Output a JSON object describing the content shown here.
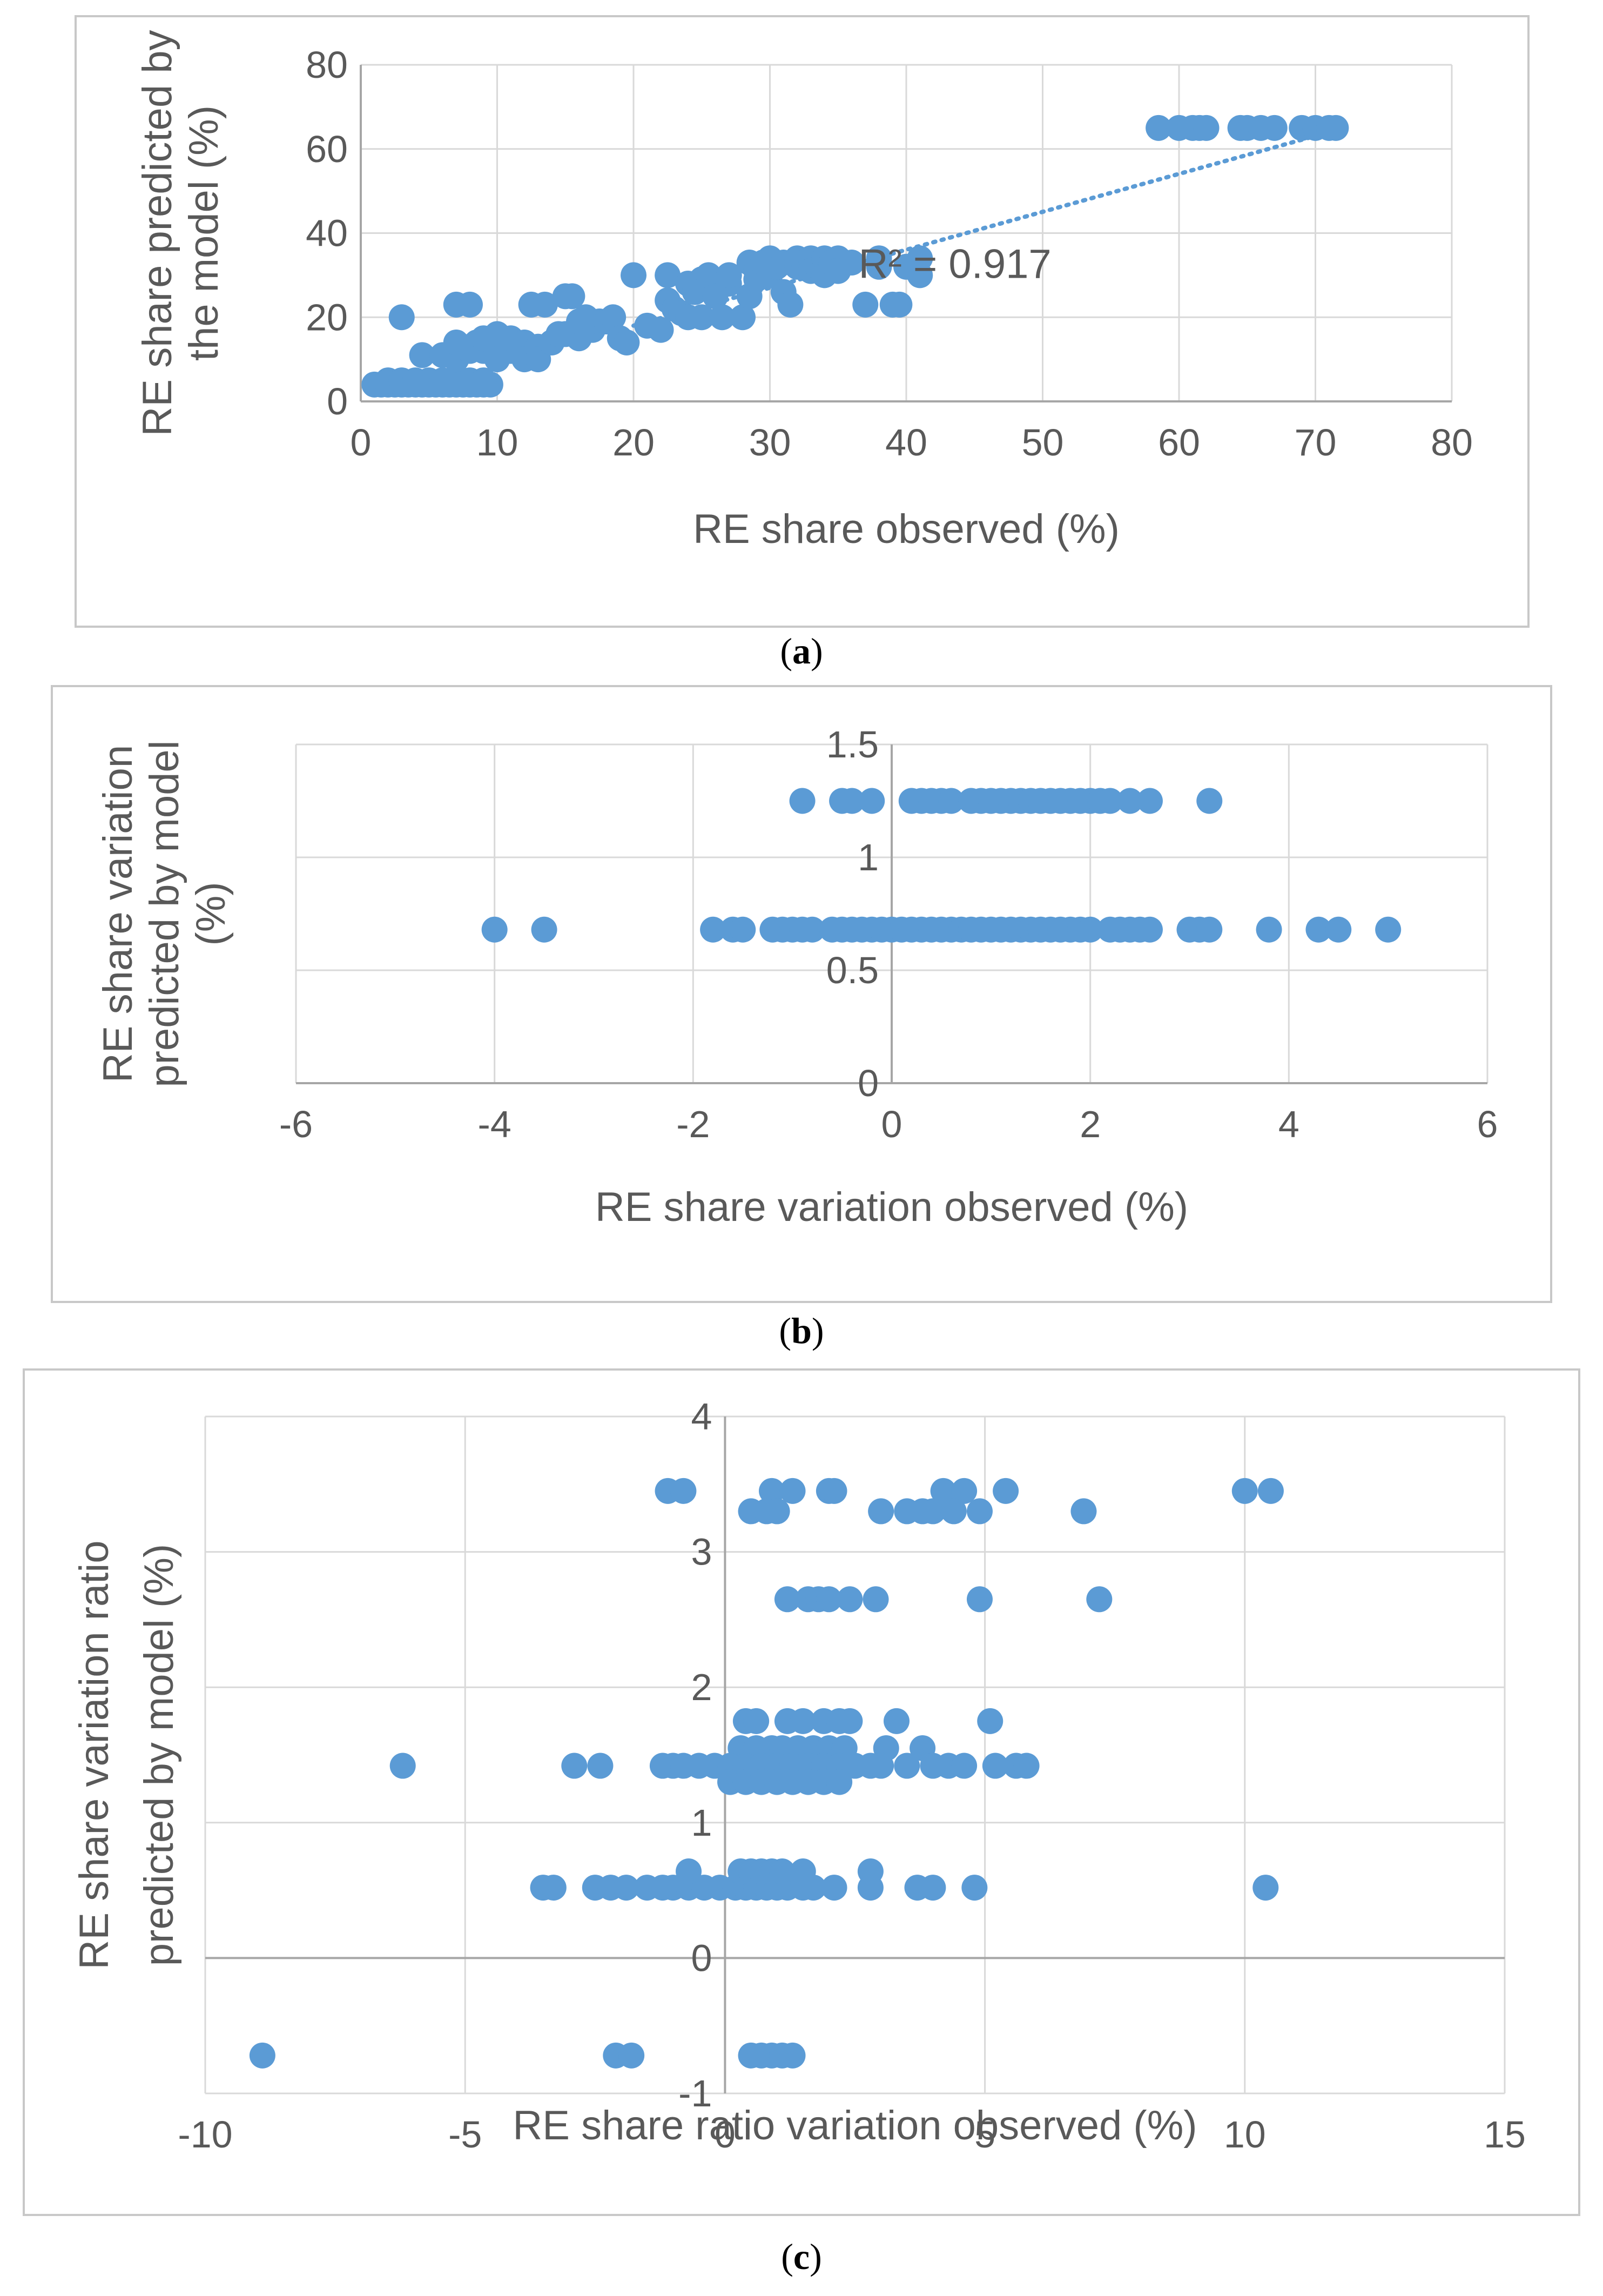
{
  "chart_data": [
    {
      "type": "scatter",
      "panel_label_parts": [
        "(",
        "a",
        ")"
      ],
      "xlabel": "RE share observed (%)",
      "ylabel_lines": [
        "RE share predicted by",
        "the model (%)"
      ],
      "xlim": [
        0,
        80
      ],
      "ylim": [
        0,
        80
      ],
      "xticks": [
        0,
        10,
        20,
        30,
        40,
        50,
        60,
        70,
        80
      ],
      "yticks": [
        0,
        20,
        40,
        60,
        80
      ],
      "xtick_labels": [
        "0",
        "10",
        "20",
        "30",
        "40",
        "50",
        "60",
        "70",
        "80"
      ],
      "ytick_labels": [
        "0",
        "20",
        "40",
        "60",
        "80"
      ],
      "grid": true,
      "marker_color": "#5b9bd5",
      "trendline": {
        "x": [
          20,
          71
        ],
        "y": [
          18,
          64
        ],
        "style": "dotted"
      },
      "annotation": "R² = 0.917",
      "points": [
        [
          1,
          4
        ],
        [
          1.5,
          4
        ],
        [
          2,
          4
        ],
        [
          2.5,
          4
        ],
        [
          3,
          4
        ],
        [
          3.5,
          4
        ],
        [
          4,
          4
        ],
        [
          4.5,
          4
        ],
        [
          5,
          4
        ],
        [
          5.5,
          4
        ],
        [
          6,
          4
        ],
        [
          6.5,
          4
        ],
        [
          7,
          4
        ],
        [
          7.5,
          4
        ],
        [
          8,
          4
        ],
        [
          8.5,
          4
        ],
        [
          9,
          4
        ],
        [
          9.5,
          4
        ],
        [
          2,
          5
        ],
        [
          3,
          5
        ],
        [
          4,
          5
        ],
        [
          5,
          5
        ],
        [
          6,
          5
        ],
        [
          7,
          5
        ],
        [
          8,
          5
        ],
        [
          9,
          5
        ],
        [
          3,
          20
        ],
        [
          7,
          23
        ],
        [
          8,
          23
        ],
        [
          4.5,
          11
        ],
        [
          6,
          11
        ],
        [
          7,
          10
        ],
        [
          7.5,
          12
        ],
        [
          8,
          13
        ],
        [
          8.5,
          14
        ],
        [
          7,
          14
        ],
        [
          8,
          12
        ],
        [
          9,
          12
        ],
        [
          9,
          15
        ],
        [
          10,
          13
        ],
        [
          10,
          10
        ],
        [
          10,
          16
        ],
        [
          11,
          12
        ],
        [
          11,
          15
        ],
        [
          12,
          14
        ],
        [
          12,
          10
        ],
        [
          12.5,
          23
        ],
        [
          13,
          13
        ],
        [
          13,
          10
        ],
        [
          13.5,
          23
        ],
        [
          14,
          14
        ],
        [
          14.5,
          16
        ],
        [
          15,
          16
        ],
        [
          15,
          25
        ],
        [
          15.5,
          25
        ],
        [
          16,
          15
        ],
        [
          16,
          19
        ],
        [
          16.5,
          20
        ],
        [
          17,
          17
        ],
        [
          17.5,
          19
        ],
        [
          18,
          19
        ],
        [
          18.5,
          20
        ],
        [
          19,
          15
        ],
        [
          19.5,
          14
        ],
        [
          20,
          30
        ],
        [
          21,
          18
        ],
        [
          22,
          17
        ],
        [
          22.5,
          24
        ],
        [
          22.5,
          30
        ],
        [
          23,
          22
        ],
        [
          23.5,
          21
        ],
        [
          24,
          28
        ],
        [
          24,
          20
        ],
        [
          24.5,
          26
        ],
        [
          25,
          29
        ],
        [
          25,
          20
        ],
        [
          25.5,
          30
        ],
        [
          26,
          25
        ],
        [
          26.5,
          20
        ],
        [
          27,
          28
        ],
        [
          27,
          30
        ],
        [
          28,
          20
        ],
        [
          28.5,
          25
        ],
        [
          28.5,
          33
        ],
        [
          29,
          31
        ],
        [
          29,
          29
        ],
        [
          29.5,
          33
        ],
        [
          30,
          30
        ],
        [
          30,
          34
        ],
        [
          30.5,
          32
        ],
        [
          31,
          33
        ],
        [
          31,
          26
        ],
        [
          31.5,
          23
        ],
        [
          32,
          34
        ],
        [
          32,
          32
        ],
        [
          32.5,
          33
        ],
        [
          33,
          34
        ],
        [
          33,
          31
        ],
        [
          33.5,
          32
        ],
        [
          34,
          34
        ],
        [
          34,
          30
        ],
        [
          34.5,
          33
        ],
        [
          35,
          34
        ],
        [
          35,
          31
        ],
        [
          36,
          33
        ],
        [
          37,
          23
        ],
        [
          38,
          34
        ],
        [
          38,
          32
        ],
        [
          39,
          23
        ],
        [
          39.5,
          23
        ],
        [
          40,
          32
        ],
        [
          41,
          34
        ],
        [
          41,
          30
        ],
        [
          58.5,
          65
        ],
        [
          60,
          65
        ],
        [
          61,
          65
        ],
        [
          61.5,
          65
        ],
        [
          62,
          65
        ],
        [
          64.5,
          65
        ],
        [
          65,
          65
        ],
        [
          66,
          65
        ],
        [
          67,
          65
        ],
        [
          69,
          65
        ],
        [
          70,
          65
        ],
        [
          71,
          65
        ],
        [
          71.5,
          65
        ]
      ]
    },
    {
      "type": "scatter",
      "panel_label_parts": [
        "(",
        "b",
        ")"
      ],
      "xlabel": "RE share variation observed (%)",
      "ylabel_lines": [
        "RE share variation",
        "predicted by model",
        "(%)"
      ],
      "xlim": [
        -6,
        6
      ],
      "ylim": [
        0,
        1.5
      ],
      "xticks": [
        -6,
        -4,
        -2,
        0,
        2,
        4,
        6
      ],
      "yticks": [
        0,
        0.5,
        1,
        1.5
      ],
      "xtick_labels": [
        "-6",
        "-4",
        "-2",
        "0",
        "2",
        "4",
        "6"
      ],
      "ytick_labels": [
        "0",
        "0.5",
        "1",
        "1.5"
      ],
      "grid": true,
      "marker_color": "#5b9bd5",
      "points": [
        [
          -0.9,
          1.25
        ],
        [
          -0.5,
          1.25
        ],
        [
          -0.4,
          1.25
        ],
        [
          -0.2,
          1.25
        ],
        [
          0.2,
          1.25
        ],
        [
          0.3,
          1.25
        ],
        [
          0.4,
          1.25
        ],
        [
          0.5,
          1.25
        ],
        [
          0.6,
          1.25
        ],
        [
          0.8,
          1.25
        ],
        [
          0.9,
          1.25
        ],
        [
          1.0,
          1.25
        ],
        [
          1.1,
          1.25
        ],
        [
          1.2,
          1.25
        ],
        [
          1.3,
          1.25
        ],
        [
          1.4,
          1.25
        ],
        [
          1.5,
          1.25
        ],
        [
          1.6,
          1.25
        ],
        [
          1.7,
          1.25
        ],
        [
          1.8,
          1.25
        ],
        [
          1.9,
          1.25
        ],
        [
          2.0,
          1.25
        ],
        [
          2.1,
          1.25
        ],
        [
          2.2,
          1.25
        ],
        [
          2.4,
          1.25
        ],
        [
          2.6,
          1.25
        ],
        [
          3.2,
          1.25
        ],
        [
          -4,
          0.68
        ],
        [
          -3.5,
          0.68
        ],
        [
          -1.8,
          0.68
        ],
        [
          -1.6,
          0.68
        ],
        [
          -1.5,
          0.68
        ],
        [
          -1.2,
          0.68
        ],
        [
          -1.1,
          0.68
        ],
        [
          -1.0,
          0.68
        ],
        [
          -0.9,
          0.68
        ],
        [
          -0.8,
          0.68
        ],
        [
          -0.6,
          0.68
        ],
        [
          -0.5,
          0.68
        ],
        [
          -0.4,
          0.68
        ],
        [
          -0.3,
          0.68
        ],
        [
          -0.2,
          0.68
        ],
        [
          -0.1,
          0.68
        ],
        [
          0,
          0.68
        ],
        [
          0.1,
          0.68
        ],
        [
          0.2,
          0.68
        ],
        [
          0.3,
          0.68
        ],
        [
          0.4,
          0.68
        ],
        [
          0.5,
          0.68
        ],
        [
          0.6,
          0.68
        ],
        [
          0.7,
          0.68
        ],
        [
          0.8,
          0.68
        ],
        [
          0.9,
          0.68
        ],
        [
          1.0,
          0.68
        ],
        [
          1.1,
          0.68
        ],
        [
          1.2,
          0.68
        ],
        [
          1.3,
          0.68
        ],
        [
          1.4,
          0.68
        ],
        [
          1.5,
          0.68
        ],
        [
          1.6,
          0.68
        ],
        [
          1.7,
          0.68
        ],
        [
          1.8,
          0.68
        ],
        [
          1.9,
          0.68
        ],
        [
          2.0,
          0.68
        ],
        [
          2.2,
          0.68
        ],
        [
          2.3,
          0.68
        ],
        [
          2.4,
          0.68
        ],
        [
          2.5,
          0.68
        ],
        [
          2.6,
          0.68
        ],
        [
          3.0,
          0.68
        ],
        [
          3.1,
          0.68
        ],
        [
          3.2,
          0.68
        ],
        [
          3.8,
          0.68
        ],
        [
          4.3,
          0.68
        ],
        [
          4.5,
          0.68
        ],
        [
          5.0,
          0.68
        ]
      ]
    },
    {
      "type": "scatter",
      "panel_label_parts": [
        "(",
        "c",
        ")"
      ],
      "xlabel": "RE share ratio variation observed (%)",
      "ylabel_lines": [
        "RE share variation ratio",
        "predicted by model (%)"
      ],
      "xlim": [
        -10,
        15
      ],
      "ylim": [
        -1,
        4
      ],
      "xticks": [
        -10,
        -5,
        0,
        5,
        10,
        15
      ],
      "yticks": [
        -1,
        0,
        1,
        2,
        3,
        4
      ],
      "xtick_labels": [
        "-10",
        "-5",
        "0",
        "5",
        "10",
        "15"
      ],
      "ytick_labels": [
        "-1",
        "0",
        "1",
        "2",
        "3",
        "4"
      ],
      "grid": true,
      "marker_color": "#5b9bd5",
      "points": [
        [
          -1.1,
          3.45
        ],
        [
          -0.8,
          3.45
        ],
        [
          0.9,
          3.45
        ],
        [
          1.3,
          3.45
        ],
        [
          2.0,
          3.45
        ],
        [
          2.1,
          3.45
        ],
        [
          4.2,
          3.45
        ],
        [
          4.6,
          3.45
        ],
        [
          5.4,
          3.45
        ],
        [
          10.0,
          3.45
        ],
        [
          10.5,
          3.45
        ],
        [
          0.5,
          3.3
        ],
        [
          0.8,
          3.3
        ],
        [
          1.0,
          3.3
        ],
        [
          3.0,
          3.3
        ],
        [
          3.5,
          3.3
        ],
        [
          3.8,
          3.3
        ],
        [
          4.0,
          3.3
        ],
        [
          4.4,
          3.3
        ],
        [
          4.9,
          3.3
        ],
        [
          6.9,
          3.3
        ],
        [
          1.2,
          2.65
        ],
        [
          1.6,
          2.65
        ],
        [
          1.8,
          2.65
        ],
        [
          2.0,
          2.65
        ],
        [
          2.4,
          2.65
        ],
        [
          2.9,
          2.65
        ],
        [
          4.9,
          2.65
        ],
        [
          7.2,
          2.65
        ],
        [
          0.4,
          1.75
        ],
        [
          0.6,
          1.75
        ],
        [
          1.2,
          1.75
        ],
        [
          1.5,
          1.75
        ],
        [
          1.9,
          1.75
        ],
        [
          2.2,
          1.75
        ],
        [
          2.4,
          1.75
        ],
        [
          3.3,
          1.75
        ],
        [
          5.1,
          1.75
        ],
        [
          0.3,
          1.55
        ],
        [
          0.6,
          1.55
        ],
        [
          0.9,
          1.55
        ],
        [
          1.1,
          1.55
        ],
        [
          1.4,
          1.55
        ],
        [
          1.7,
          1.55
        ],
        [
          2.0,
          1.55
        ],
        [
          2.3,
          1.55
        ],
        [
          3.1,
          1.55
        ],
        [
          3.8,
          1.55
        ],
        [
          -6.2,
          1.42
        ],
        [
          -2.9,
          1.42
        ],
        [
          -2.4,
          1.42
        ],
        [
          -1.2,
          1.42
        ],
        [
          -1.0,
          1.42
        ],
        [
          -0.8,
          1.42
        ],
        [
          -0.5,
          1.42
        ],
        [
          -0.2,
          1.42
        ],
        [
          0.1,
          1.42
        ],
        [
          0.4,
          1.42
        ],
        [
          0.7,
          1.42
        ],
        [
          1.0,
          1.42
        ],
        [
          1.3,
          1.42
        ],
        [
          1.6,
          1.42
        ],
        [
          1.9,
          1.42
        ],
        [
          2.2,
          1.42
        ],
        [
          2.5,
          1.42
        ],
        [
          2.8,
          1.42
        ],
        [
          3.0,
          1.42
        ],
        [
          3.5,
          1.42
        ],
        [
          4.0,
          1.42
        ],
        [
          4.3,
          1.42
        ],
        [
          4.6,
          1.42
        ],
        [
          5.2,
          1.42
        ],
        [
          5.6,
          1.42
        ],
        [
          5.8,
          1.42
        ],
        [
          0.1,
          1.3
        ],
        [
          0.4,
          1.3
        ],
        [
          0.7,
          1.3
        ],
        [
          1.0,
          1.3
        ],
        [
          1.3,
          1.3
        ],
        [
          1.6,
          1.3
        ],
        [
          1.9,
          1.3
        ],
        [
          2.2,
          1.3
        ],
        [
          -3.5,
          0.52
        ],
        [
          -3.3,
          0.52
        ],
        [
          -2.5,
          0.52
        ],
        [
          -2.2,
          0.52
        ],
        [
          -1.9,
          0.52
        ],
        [
          -1.5,
          0.52
        ],
        [
          -1.2,
          0.52
        ],
        [
          -1.0,
          0.52
        ],
        [
          -0.7,
          0.52
        ],
        [
          -0.4,
          0.52
        ],
        [
          -0.1,
          0.52
        ],
        [
          0.2,
          0.52
        ],
        [
          0.4,
          0.52
        ],
        [
          0.6,
          0.52
        ],
        [
          0.8,
          0.52
        ],
        [
          1.0,
          0.52
        ],
        [
          1.2,
          0.52
        ],
        [
          1.5,
          0.52
        ],
        [
          1.7,
          0.52
        ],
        [
          2.1,
          0.52
        ],
        [
          2.8,
          0.52
        ],
        [
          3.7,
          0.52
        ],
        [
          4.0,
          0.52
        ],
        [
          4.8,
          0.52
        ],
        [
          10.4,
          0.52
        ],
        [
          -0.7,
          0.64
        ],
        [
          0.3,
          0.64
        ],
        [
          0.5,
          0.64
        ],
        [
          0.7,
          0.64
        ],
        [
          0.9,
          0.64
        ],
        [
          1.1,
          0.64
        ],
        [
          1.5,
          0.64
        ],
        [
          2.8,
          0.64
        ],
        [
          -8.9,
          -0.72
        ],
        [
          -2.1,
          -0.72
        ],
        [
          -1.8,
          -0.72
        ],
        [
          0.5,
          -0.72
        ],
        [
          0.7,
          -0.72
        ],
        [
          0.9,
          -0.72
        ],
        [
          1.1,
          -0.72
        ],
        [
          1.3,
          -0.72
        ]
      ]
    }
  ]
}
